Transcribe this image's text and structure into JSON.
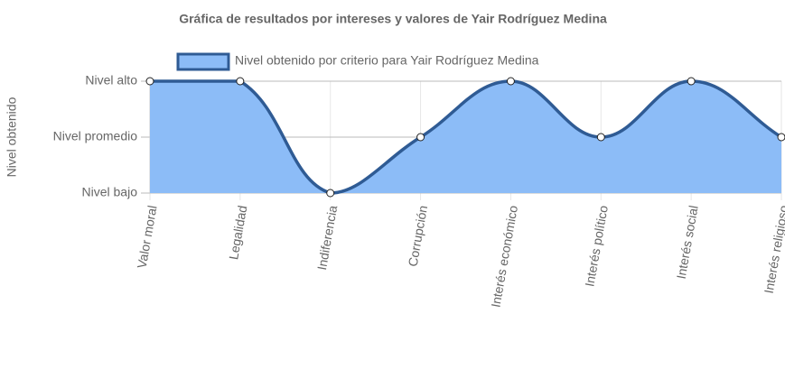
{
  "chart_data": {
    "type": "line",
    "title": "Gráfica de resultados por intereses y valores de Yair Rodríguez Medina",
    "y_label": "Nivel obtenido",
    "categories": [
      "Valor moral",
      "Legalidad",
      "Indiferencia",
      "Corrupción",
      "Interés económico",
      "Interés político",
      "Interés social",
      "Interés religioso"
    ],
    "series": [
      {
        "name": "Nivel obtenido por criterio para Yair Rodríguez Medina",
        "color": "#2f5b94",
        "fill_color": "#8cbcf7",
        "values": [
          3,
          3,
          1,
          2,
          3,
          2,
          3,
          2
        ]
      }
    ],
    "ylim": [
      1,
      3
    ],
    "yticks": [
      {
        "value": 1,
        "label": "Nivel bajo"
      },
      {
        "value": 2,
        "label": "Nivel promedio"
      },
      {
        "value": 3,
        "label": "Nivel alto"
      }
    ],
    "grid": true,
    "legend": "top",
    "fill": true
  }
}
